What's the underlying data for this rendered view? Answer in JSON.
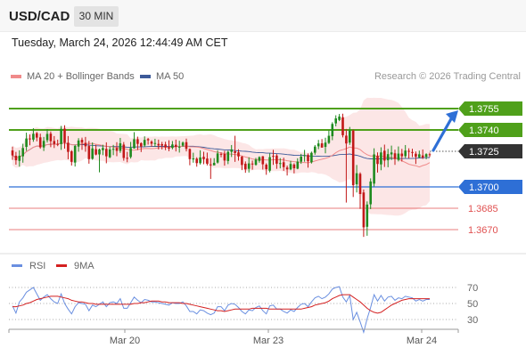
{
  "header": {
    "symbol": "USD/CAD",
    "timeframe": "30 MIN"
  },
  "timestamp": "Tuesday, March 24, 2026 12:44:49 AM CET",
  "legend": {
    "ma20_label": "MA 20 + Bollinger Bands",
    "ma50_label": "MA 50",
    "credit": "Research © 2026 Trading Central"
  },
  "colors": {
    "green": "#4fa01a",
    "blue": "#2e6fd6",
    "red": "#e05050",
    "dark": "#333333",
    "ma20": "#f08a8a",
    "ma50": "#3d5a99",
    "band": "#fbe0e0",
    "bull": "#1f8a1f",
    "bear": "#c21818",
    "rsi": "#6a8fe0",
    "rsi_ma": "#d42020"
  },
  "chart_data": [
    {
      "type": "candlestick",
      "ylim": [
        1.3655,
        1.3775
      ],
      "levels": [
        {
          "value": 1.3755,
          "label": "1.3755",
          "kind": "resistance"
        },
        {
          "value": 1.374,
          "label": "1.3740",
          "kind": "resistance"
        },
        {
          "value": 1.3725,
          "label": "1.3725",
          "kind": "last_price"
        },
        {
          "value": 1.37,
          "label": "1.3700",
          "kind": "pivot"
        },
        {
          "value": 1.3685,
          "label": "1.3685",
          "kind": "support"
        },
        {
          "value": 1.367,
          "label": "1.3670",
          "kind": "support"
        }
      ],
      "x_ticks": [
        "Mar 20",
        "Mar 23",
        "Mar 24"
      ],
      "series": [
        {
          "name": "MA 20",
          "values": []
        },
        {
          "name": "MA 50",
          "values": []
        }
      ],
      "candles": [
        [
          1.37256,
          1.37221,
          1.37283,
          1.3719
        ],
        [
          1.37219,
          1.37187,
          1.37246,
          1.37156
        ],
        [
          1.37183,
          1.37219,
          1.37257,
          1.37142
        ],
        [
          1.37215,
          1.37273,
          1.37303,
          1.3717
        ],
        [
          1.37281,
          1.3734,
          1.37381,
          1.37253
        ],
        [
          1.3734,
          1.37335,
          1.37368,
          1.37292
        ],
        [
          1.37332,
          1.37373,
          1.37412,
          1.37317
        ],
        [
          1.37377,
          1.37346,
          1.37386,
          1.3732
        ],
        [
          1.37348,
          1.37278,
          1.37374,
          1.37268
        ],
        [
          1.37277,
          1.37323,
          1.37351,
          1.37252
        ],
        [
          1.37328,
          1.37372,
          1.37406,
          1.37312
        ],
        [
          1.37374,
          1.37321,
          1.37389,
          1.37279
        ],
        [
          1.37322,
          1.37301,
          1.37357,
          1.37273
        ],
        [
          1.37302,
          1.37298,
          1.37332,
          1.37286
        ],
        [
          1.37301,
          1.37408,
          1.37428,
          1.3726
        ],
        [
          1.37409,
          1.3731,
          1.37433,
          1.37269
        ],
        [
          1.3731,
          1.37246,
          1.37357,
          1.37194
        ],
        [
          1.3725,
          1.37176,
          1.37258,
          1.3715
        ],
        [
          1.37171,
          1.37288,
          1.37295,
          1.37143
        ],
        [
          1.37283,
          1.37326,
          1.37342,
          1.37247
        ],
        [
          1.37331,
          1.37311,
          1.37346,
          1.3726
        ],
        [
          1.37309,
          1.37285,
          1.37351,
          1.37247
        ],
        [
          1.37287,
          1.37195,
          1.37323,
          1.37163
        ],
        [
          1.37197,
          1.3727,
          1.37312,
          1.3719
        ],
        [
          1.37265,
          1.37227,
          1.37296,
          1.37222
        ],
        [
          1.37228,
          1.37263,
          1.37269,
          1.37102
        ],
        [
          1.37258,
          1.37273,
          1.37296,
          1.37223
        ],
        [
          1.37267,
          1.37215,
          1.37313,
          1.37166
        ],
        [
          1.37208,
          1.37263,
          1.37282,
          1.37202
        ],
        [
          1.37265,
          1.37267,
          1.37295,
          1.37223
        ],
        [
          1.37273,
          1.37253,
          1.37314,
          1.37216
        ],
        [
          1.37253,
          1.37306,
          1.37344,
          1.37239
        ],
        [
          1.37297,
          1.37203,
          1.37315,
          1.37184
        ],
        [
          1.37204,
          1.37203,
          1.37246,
          1.37173
        ],
        [
          1.3721,
          1.37273,
          1.37316,
          1.37199
        ],
        [
          1.37271,
          1.37335,
          1.37384,
          1.37269
        ],
        [
          1.37335,
          1.37302,
          1.37353,
          1.37259
        ],
        [
          1.37307,
          1.37284,
          1.37313,
          1.37245
        ],
        [
          1.37291,
          1.3733,
          1.37355,
          1.37281
        ],
        [
          1.37336,
          1.37327,
          1.37344,
          1.37297
        ],
        [
          1.37318,
          1.37303,
          1.37327,
          1.37282
        ],
        [
          1.37302,
          1.37308,
          1.37338,
          1.37281
        ],
        [
          1.37302,
          1.37291,
          1.37332,
          1.37263
        ],
        [
          1.373,
          1.3729,
          1.37316,
          1.37263
        ],
        [
          1.37298,
          1.37278,
          1.37317,
          1.37258
        ],
        [
          1.37278,
          1.37269,
          1.37327,
          1.37251
        ],
        [
          1.37274,
          1.37298,
          1.37322,
          1.37264
        ],
        [
          1.37296,
          1.37281,
          1.37332,
          1.37249
        ],
        [
          1.37277,
          1.37282,
          1.37324,
          1.37241
        ],
        [
          1.3729,
          1.37311,
          1.37319,
          1.37282
        ],
        [
          1.37314,
          1.37267,
          1.37339,
          1.37249
        ],
        [
          1.37266,
          1.37195,
          1.3727,
          1.37152
        ],
        [
          1.37193,
          1.372,
          1.3724,
          1.3717
        ],
        [
          1.37198,
          1.37167,
          1.37208,
          1.37142
        ],
        [
          1.37167,
          1.37207,
          1.37257,
          1.37157
        ],
        [
          1.37211,
          1.37195,
          1.37247,
          1.37159
        ],
        [
          1.37199,
          1.37163,
          1.37241,
          1.37151
        ],
        [
          1.37158,
          1.37153,
          1.37202,
          1.37056
        ],
        [
          1.37151,
          1.37169,
          1.37202,
          1.37164
        ],
        [
          1.37171,
          1.37235,
          1.37257,
          1.37164
        ],
        [
          1.37232,
          1.3723,
          1.37242,
          1.37208
        ],
        [
          1.37232,
          1.37185,
          1.37253,
          1.37149
        ],
        [
          1.37182,
          1.37247,
          1.37254,
          1.3716
        ],
        [
          1.37246,
          1.37263,
          1.37294,
          1.3721
        ],
        [
          1.3725,
          1.37238,
          1.37359,
          1.37176
        ],
        [
          1.37243,
          1.37214,
          1.37264,
          1.37184
        ],
        [
          1.37212,
          1.37154,
          1.37218,
          1.37118
        ],
        [
          1.37163,
          1.37123,
          1.37179,
          1.37099
        ],
        [
          1.37127,
          1.37165,
          1.37208,
          1.37101
        ],
        [
          1.37164,
          1.37158,
          1.37185,
          1.37121
        ],
        [
          1.37155,
          1.37192,
          1.37204,
          1.37149
        ],
        [
          1.37183,
          1.37209,
          1.37215,
          1.3717
        ],
        [
          1.37215,
          1.37159,
          1.37217,
          1.37122
        ],
        [
          1.37156,
          1.37124,
          1.37166,
          1.37085
        ],
        [
          1.37114,
          1.37209,
          1.37235,
          1.37102
        ],
        [
          1.37218,
          1.37217,
          1.3726,
          1.37155
        ],
        [
          1.3722,
          1.37163,
          1.37231,
          1.37127
        ],
        [
          1.37163,
          1.37167,
          1.37202,
          1.3713
        ],
        [
          1.37173,
          1.37139,
          1.37205,
          1.37113
        ],
        [
          1.37136,
          1.37123,
          1.3715,
          1.3708
        ],
        [
          1.37123,
          1.37161,
          1.37183,
          1.37117
        ],
        [
          1.37157,
          1.37131,
          1.37166,
          1.37095
        ],
        [
          1.37128,
          1.37178,
          1.37201,
          1.37124
        ],
        [
          1.37177,
          1.37213,
          1.37232,
          1.37162
        ],
        [
          1.37218,
          1.37223,
          1.3726,
          1.37177
        ],
        [
          1.37224,
          1.3718,
          1.37235,
          1.37135
        ],
        [
          1.37173,
          1.37239,
          1.37248,
          1.37164
        ],
        [
          1.3724,
          1.37283,
          1.37294,
          1.37226
        ],
        [
          1.37285,
          1.37305,
          1.3733,
          1.37265
        ],
        [
          1.37306,
          1.37276,
          1.37336,
          1.37276
        ],
        [
          1.37281,
          1.37311,
          1.37345,
          1.37236
        ],
        [
          1.37309,
          1.37359,
          1.37397,
          1.37301
        ],
        [
          1.37356,
          1.37442,
          1.37454,
          1.37328
        ],
        [
          1.37446,
          1.37481,
          1.37503,
          1.37425
        ],
        [
          1.3747,
          1.37494,
          1.37512,
          1.37462
        ],
        [
          1.37489,
          1.37363,
          1.37514,
          1.37348
        ],
        [
          1.3736,
          1.37305,
          1.37407,
          1.3689
        ],
        [
          1.37311,
          1.37397,
          1.37421,
          1.37295
        ],
        [
          1.37395,
          1.37012,
          1.37403,
          1.36929
        ],
        [
          1.37018,
          1.37096,
          1.37154,
          1.36961
        ],
        [
          1.37092,
          1.3695,
          1.37102,
          1.36845
        ],
        [
          1.36961,
          1.36716,
          1.36982,
          1.36649
        ],
        [
          1.3672,
          1.36876,
          1.36898,
          1.36657
        ],
        [
          1.36878,
          1.37038,
          1.3706,
          1.36844
        ],
        [
          1.37023,
          1.37228,
          1.37271,
          1.37003
        ],
        [
          1.37218,
          1.37161,
          1.37242,
          1.37101
        ],
        [
          1.37158,
          1.37242,
          1.37278,
          1.37117
        ],
        [
          1.37254,
          1.37185,
          1.37297,
          1.3714
        ],
        [
          1.37187,
          1.3723,
          1.37267,
          1.37138
        ],
        [
          1.37228,
          1.37242,
          1.3729,
          1.37189
        ],
        [
          1.37236,
          1.37196,
          1.37262,
          1.37155
        ],
        [
          1.3719,
          1.37234,
          1.37284,
          1.37179
        ],
        [
          1.37234,
          1.37215,
          1.37267,
          1.37178
        ],
        [
          1.37216,
          1.37255,
          1.37294,
          1.37203
        ],
        [
          1.37253,
          1.37247,
          1.37271,
          1.372
        ],
        [
          1.37245,
          1.37241,
          1.37268,
          1.37209
        ],
        [
          1.37233,
          1.37212,
          1.37249,
          1.37161
        ],
        [
          1.37208,
          1.37229,
          1.37255,
          1.37202
        ],
        [
          1.37221,
          1.37206,
          1.37263,
          1.37196
        ],
        [
          1.37211,
          1.3723,
          1.37236,
          1.37194
        ],
        [
          1.37229,
          1.37226,
          1.37241,
          1.37209
        ]
      ]
    },
    {
      "type": "line",
      "title": "RSI",
      "ylim": [
        20,
        80
      ],
      "y_ticks": [
        "70",
        "50",
        "30"
      ],
      "series": [
        {
          "name": "RSI",
          "values": [
            47,
            38,
            52,
            57,
            64,
            67,
            70,
            62,
            54,
            58,
            61,
            56,
            52,
            50,
            62,
            50,
            43,
            37,
            46,
            51,
            50,
            49,
            41,
            48,
            46,
            49,
            52,
            46,
            51,
            52,
            50,
            56,
            44,
            44,
            51,
            58,
            54,
            51,
            55,
            54,
            52,
            52,
            51,
            50,
            49,
            48,
            51,
            50,
            50,
            52,
            47,
            40,
            40,
            37,
            42,
            41,
            38,
            36,
            38,
            46,
            46,
            41,
            48,
            50,
            49,
            45,
            40,
            37,
            42,
            41,
            45,
            47,
            41,
            37,
            47,
            48,
            43,
            43,
            40,
            38,
            42,
            40,
            45,
            49,
            50,
            46,
            52,
            57,
            59,
            56,
            58,
            62,
            68,
            70,
            71,
            58,
            52,
            60,
            30,
            39,
            27,
            14,
            31,
            45,
            61,
            53,
            60,
            53,
            58,
            59,
            54,
            57,
            56,
            59,
            58,
            57,
            53,
            55,
            53,
            55,
            55
          ]
        },
        {
          "name": "9MA",
          "values": [
            46,
            46,
            47,
            48,
            50,
            51,
            53,
            55,
            56,
            57,
            58,
            59,
            59,
            59,
            58,
            57,
            56,
            54,
            53,
            52,
            52,
            51,
            50,
            50,
            49,
            49,
            49,
            49,
            49,
            49,
            49,
            49,
            49,
            49,
            49,
            50,
            50,
            51,
            51,
            52,
            53,
            53,
            53,
            52,
            52,
            51,
            51,
            51,
            51,
            50,
            50,
            49,
            48,
            47,
            46,
            45,
            44,
            43,
            42,
            41,
            41,
            40,
            41,
            42,
            43,
            43,
            43,
            43,
            43,
            44,
            44,
            44,
            44,
            44,
            43,
            43,
            43,
            43,
            43,
            43,
            43,
            43,
            43,
            43,
            44,
            45,
            46,
            48,
            49,
            50,
            51,
            53,
            56,
            58,
            60,
            61,
            61,
            61,
            58,
            55,
            52,
            48,
            44,
            41,
            39,
            38,
            39,
            42,
            45,
            48,
            50,
            52,
            54,
            55,
            56,
            56,
            56,
            56,
            56,
            56,
            56
          ]
        }
      ]
    }
  ]
}
